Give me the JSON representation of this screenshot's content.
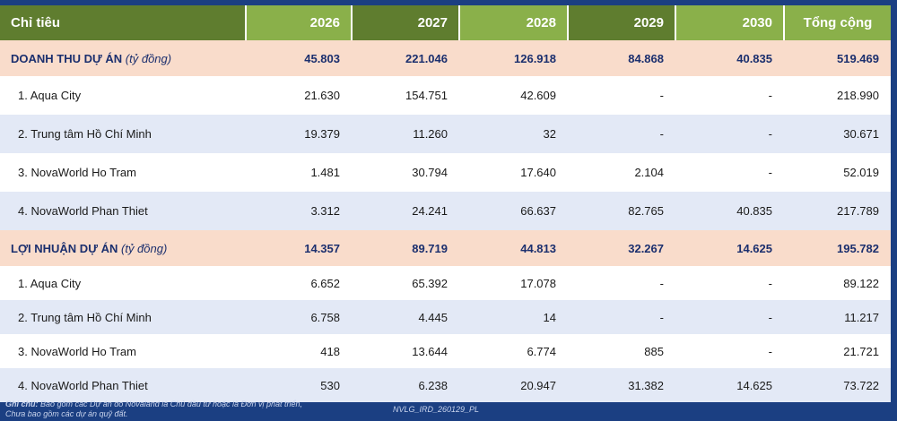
{
  "table": {
    "headers": [
      "Chỉ tiêu",
      "2026",
      "2027",
      "2028",
      "2029",
      "2030",
      "Tổng cộng"
    ],
    "sections": [
      {
        "label": "DOANH THU DỰ ÁN",
        "unit": "(tỷ đồng)",
        "values": [
          "45.803",
          "221.046",
          "126.918",
          "84.868",
          "40.835",
          "519.469"
        ],
        "rows": [
          {
            "label": "1. Aqua City",
            "values": [
              "21.630",
              "154.751",
              "42.609",
              "-",
              "-",
              "218.990"
            ]
          },
          {
            "label": "2. Trung tâm Hồ Chí Minh",
            "values": [
              "19.379",
              "11.260",
              "32",
              "-",
              "-",
              "30.671"
            ]
          },
          {
            "label": "3. NovaWorld Ho Tram",
            "values": [
              "1.481",
              "30.794",
              "17.640",
              "2.104",
              "-",
              "52.019"
            ]
          },
          {
            "label": "4. NovaWorld Phan Thiet",
            "values": [
              "3.312",
              "24.241",
              "66.637",
              "82.765",
              "40.835",
              "217.789"
            ]
          }
        ]
      },
      {
        "label": "LỢI NHUẬN DỰ ÁN",
        "unit": "(tỷ đồng)",
        "values": [
          "14.357",
          "89.719",
          "44.813",
          "32.267",
          "14.625",
          "195.782"
        ],
        "rows": [
          {
            "label": "1. Aqua City",
            "values": [
              "6.652",
              "65.392",
              "17.078",
              "-",
              "-",
              "89.122"
            ]
          },
          {
            "label": "2. Trung tâm Hồ Chí Minh",
            "values": [
              "6.758",
              "4.445",
              "14",
              "-",
              "-",
              "11.217"
            ]
          },
          {
            "label": "3. NovaWorld Ho Tram",
            "values": [
              "418",
              "13.644",
              "6.774",
              "885",
              "-",
              "21.721"
            ]
          },
          {
            "label": "4. NovaWorld Phan Thiet",
            "values": [
              "530",
              "6.238",
              "20.947",
              "31.382",
              "14.625",
              "73.722"
            ]
          }
        ]
      }
    ]
  },
  "footer": {
    "note_label": "Ghi chú:",
    "note_line1": "Bao gồm các Dự án do Novaland là Chủ đầu tư hoặc là Đơn vị phát triển,",
    "note_line2": "Chưa bao gồm các dự án quỹ đất.",
    "code": "NVLG_IRD_260129_PL"
  },
  "colors": {
    "background": "#1b3f82",
    "header_dark": "#5f7d2f",
    "header_light": "#8ab04a",
    "section_row": "#f9dccb",
    "band_row": "#e3e9f6"
  }
}
